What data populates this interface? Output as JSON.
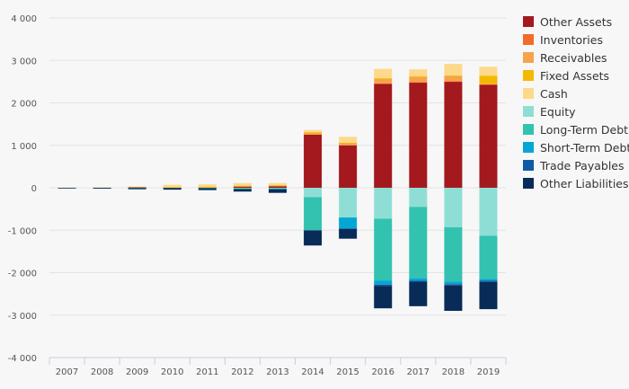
{
  "chart_data": {
    "type": "bar",
    "stacked": true,
    "categories": [
      "2007",
      "2008",
      "2009",
      "2010",
      "2011",
      "2012",
      "2013",
      "2014",
      "2015",
      "2016",
      "2017",
      "2018",
      "2019"
    ],
    "ylim": [
      -4000,
      4000
    ],
    "y_ticks": [
      4000,
      3000,
      2000,
      1000,
      0,
      -1000,
      -2000,
      -3000,
      -4000
    ],
    "y_tick_labels": [
      "4 000",
      "3 000",
      "2 000",
      "1 000",
      "0",
      "-1 000",
      "-2 000",
      "-3 000",
      "-4 000"
    ],
    "grid": true,
    "legend_position": "right",
    "series": [
      {
        "name": "Other Assets",
        "color": "#a3191e",
        "values": [
          0,
          5,
          10,
          10,
          10,
          30,
          40,
          1250,
          1000,
          2450,
          2480,
          2500,
          2430
        ]
      },
      {
        "name": "Inventories",
        "color": "#f26b2a",
        "values": [
          0,
          0,
          0,
          0,
          0,
          0,
          0,
          0,
          0,
          10,
          10,
          10,
          10
        ]
      },
      {
        "name": "Receivables",
        "color": "#f6a34b",
        "values": [
          0,
          0,
          0,
          0,
          5,
          10,
          10,
          50,
          50,
          100,
          120,
          120,
          10
        ]
      },
      {
        "name": "Fixed Assets",
        "color": "#f5b800",
        "values": [
          0,
          0,
          0,
          5,
          5,
          10,
          10,
          10,
          10,
          20,
          20,
          20,
          190
        ]
      },
      {
        "name": "Cash",
        "color": "#fdd98b",
        "values": [
          5,
          5,
          20,
          55,
          60,
          60,
          50,
          50,
          140,
          220,
          160,
          270,
          210
        ]
      },
      {
        "name": "Equity",
        "color": "#8fded5",
        "values": [
          0,
          0,
          0,
          0,
          0,
          -10,
          -10,
          -220,
          -700,
          -730,
          -450,
          -930,
          -1130
        ]
      },
      {
        "name": "Long-Term Debt",
        "color": "#33c2b0",
        "values": [
          0,
          0,
          -5,
          -5,
          -10,
          -20,
          -20,
          -780,
          0,
          -1460,
          -1680,
          -1280,
          -1020
        ]
      },
      {
        "name": "Short-Term Debt",
        "color": "#05a6d6",
        "values": [
          0,
          0,
          0,
          0,
          0,
          0,
          0,
          0,
          -260,
          -90,
          -60,
          -60,
          -40
        ]
      },
      {
        "name": "Trade Payables",
        "color": "#0f5aa6",
        "values": [
          0,
          0,
          0,
          0,
          0,
          0,
          -10,
          -10,
          -10,
          -30,
          -20,
          -30,
          -30
        ]
      },
      {
        "name": "Other Liabilities",
        "color": "#082c57",
        "values": [
          -10,
          -20,
          -30,
          -40,
          -45,
          -60,
          -80,
          -350,
          -230,
          -530,
          -580,
          -600,
          -640
        ]
      }
    ]
  }
}
